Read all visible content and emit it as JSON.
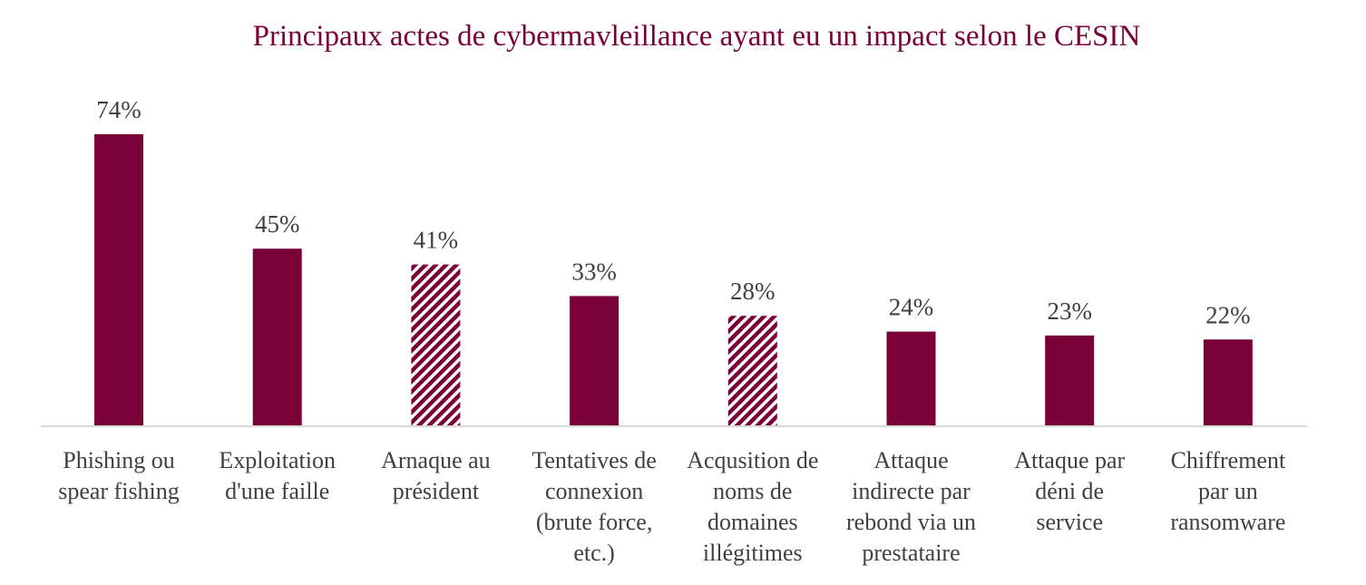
{
  "chart_data": {
    "type": "bar",
    "title": "Principaux actes de cybermavleillance ayant eu un impact selon le CESIN",
    "xlabel": "",
    "ylabel": "",
    "ylim": [
      0,
      80
    ],
    "grid": false,
    "legend": "none",
    "categories": [
      [
        "Phishing ou",
        "spear fishing"
      ],
      [
        "Exploitation",
        "d'une faille"
      ],
      [
        "Arnaque au",
        "président"
      ],
      [
        "Tentatives de",
        "connexion",
        "(brute force,",
        "etc.)"
      ],
      [
        "Acqusition de",
        "noms de",
        "domaines",
        "illégitimes"
      ],
      [
        "Attaque",
        "indirecte par",
        "rebond via un",
        "prestataire"
      ],
      [
        "Attaque par",
        "déni de",
        "service"
      ],
      [
        "Chiffrement",
        "par un",
        "ransomware"
      ]
    ],
    "values": [
      74,
      45,
      41,
      33,
      28,
      24,
      23,
      22
    ],
    "value_labels": [
      "74%",
      "45%",
      "41%",
      "33%",
      "28%",
      "24%",
      "23%",
      "22%"
    ],
    "fill_styles": [
      "solid",
      "solid",
      "hatched",
      "solid",
      "hatched",
      "solid",
      "solid",
      "solid"
    ],
    "colors": {
      "bar": "#7a0038",
      "title": "#7a0038",
      "text": "#404040",
      "axis": "#d9d9d9"
    }
  }
}
